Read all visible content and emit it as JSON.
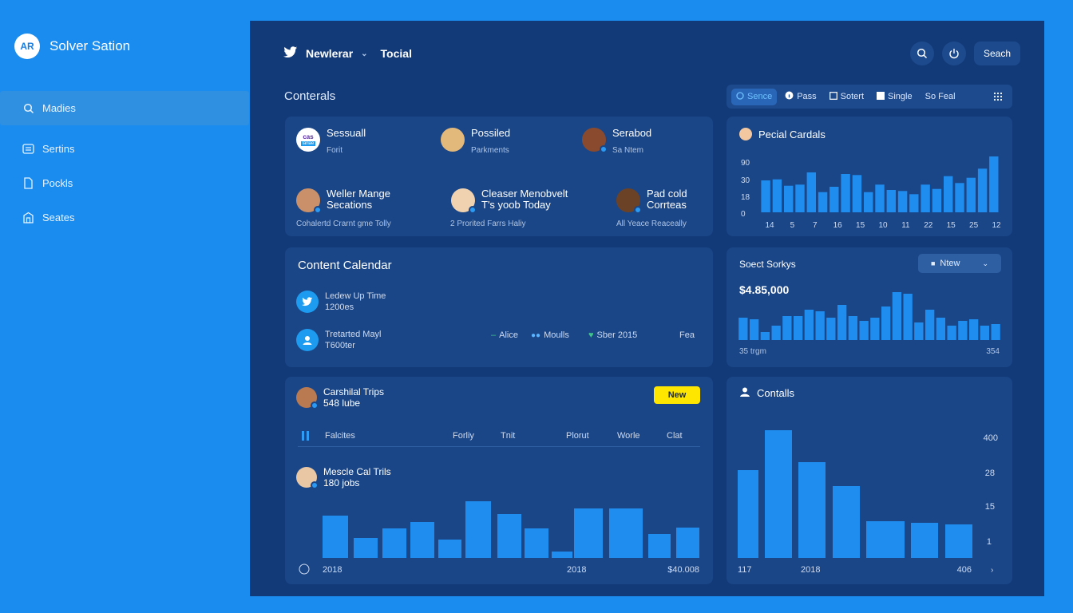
{
  "brand": {
    "logo": "AR",
    "name": "Solver Sation"
  },
  "nav": [
    {
      "label": "Madies",
      "icon": "search-icon"
    },
    {
      "label": "Sertins",
      "icon": "list-icon"
    },
    {
      "label": "Pockls",
      "icon": "doc-icon"
    },
    {
      "label": "Seates",
      "icon": "building-icon"
    }
  ],
  "topbar": {
    "title": "Newlerar",
    "subtitle": "Tocial",
    "search_label": "Seach"
  },
  "section_title": "Conterals",
  "filters": [
    {
      "label": "Sence",
      "active": true
    },
    {
      "label": "Pass",
      "active": false
    },
    {
      "label": "Sotert",
      "active": false
    },
    {
      "label": "Single",
      "active": false
    },
    {
      "label": "So Feal",
      "active": false
    }
  ],
  "contacts": [
    {
      "name": "Sessuall",
      "sub": "Forit",
      "logo": "cas",
      "logo_label": "lariae"
    },
    {
      "name": "Possiled",
      "sub": "Parkments"
    },
    {
      "name": "Serabod",
      "sub": "Sa Ntem"
    },
    {
      "name": "Weller Mange",
      "name2": "Secations",
      "foot": "Cohalertd Crarnt gme Tolly"
    },
    {
      "name": "Cleaser Menobvelt",
      "name2": "T's yoob Today",
      "foot": "2 Prorited Farrs Haliy"
    },
    {
      "name": "Pad cold",
      "name2": "Corrteas",
      "foot": "All Yeace Reaceally"
    }
  ],
  "personal": {
    "title": "Pecial Cardals",
    "chart_data": {
      "type": "bar",
      "y_ticks": [
        "90",
        "30",
        "18",
        "0"
      ],
      "x_ticks": [
        "14",
        "5",
        "7",
        "16",
        "15",
        "10",
        "11",
        "22",
        "15",
        "25",
        "12"
      ],
      "values": [
        60,
        62,
        50,
        52,
        75,
        38,
        48,
        72,
        70,
        38,
        52,
        42,
        40,
        34,
        52,
        44,
        68,
        55,
        65,
        82,
        105
      ]
    }
  },
  "calendar": {
    "title": "Content Calendar",
    "rows": [
      {
        "line1": "Ledew Up Time",
        "line2": "1200es"
      },
      {
        "line1": "Tretarted Mayl",
        "line2": "T600ter"
      }
    ],
    "legend": [
      {
        "label": "Alice",
        "color": "#3fc38a",
        "marker": "dash"
      },
      {
        "label": "Moulls",
        "color": "#5ab4ff",
        "marker": "people"
      },
      {
        "label": "Sber 2015",
        "color": "#3fc38a",
        "marker": "heart"
      },
      {
        "label": "Fea",
        "color": "#cfdcf2",
        "marker": "none"
      }
    ]
  },
  "sales": {
    "title": "Soect Sorkys",
    "dropdown": "Ntew",
    "value": "$4.85,000",
    "x_start": "35 trgm",
    "x_end": "354",
    "chart_data": {
      "type": "bar",
      "values": [
        28,
        26,
        10,
        18,
        30,
        30,
        38,
        36,
        28,
        44,
        30,
        24,
        28,
        42,
        60,
        58,
        22,
        38,
        28,
        18,
        24,
        26,
        18,
        20
      ]
    }
  },
  "trips": {
    "title": "Carshilal Trips",
    "subtitle": "548 lube",
    "badge": "New",
    "columns": [
      "Falcites",
      "Forliy",
      "Tnit",
      "Plorut",
      "Worle",
      "Clat"
    ],
    "row_title": "Mescle Cal Trils",
    "row_sub": "180 jobs",
    "footer": [
      "2018",
      "2018",
      "$40.008"
    ],
    "chart_data": {
      "type": "bar",
      "values": [
        53,
        25,
        37,
        45,
        23,
        71,
        55,
        37,
        8,
        62,
        62,
        30,
        38
      ]
    }
  },
  "contalls": {
    "title": "Contalls",
    "y_ticks": [
      "400",
      "28",
      "15",
      "1"
    ],
    "footer": [
      "117",
      "2018",
      "406"
    ],
    "chart_data": {
      "type": "bar",
      "values": [
        110,
        160,
        120,
        90,
        46,
        44,
        42
      ]
    }
  }
}
